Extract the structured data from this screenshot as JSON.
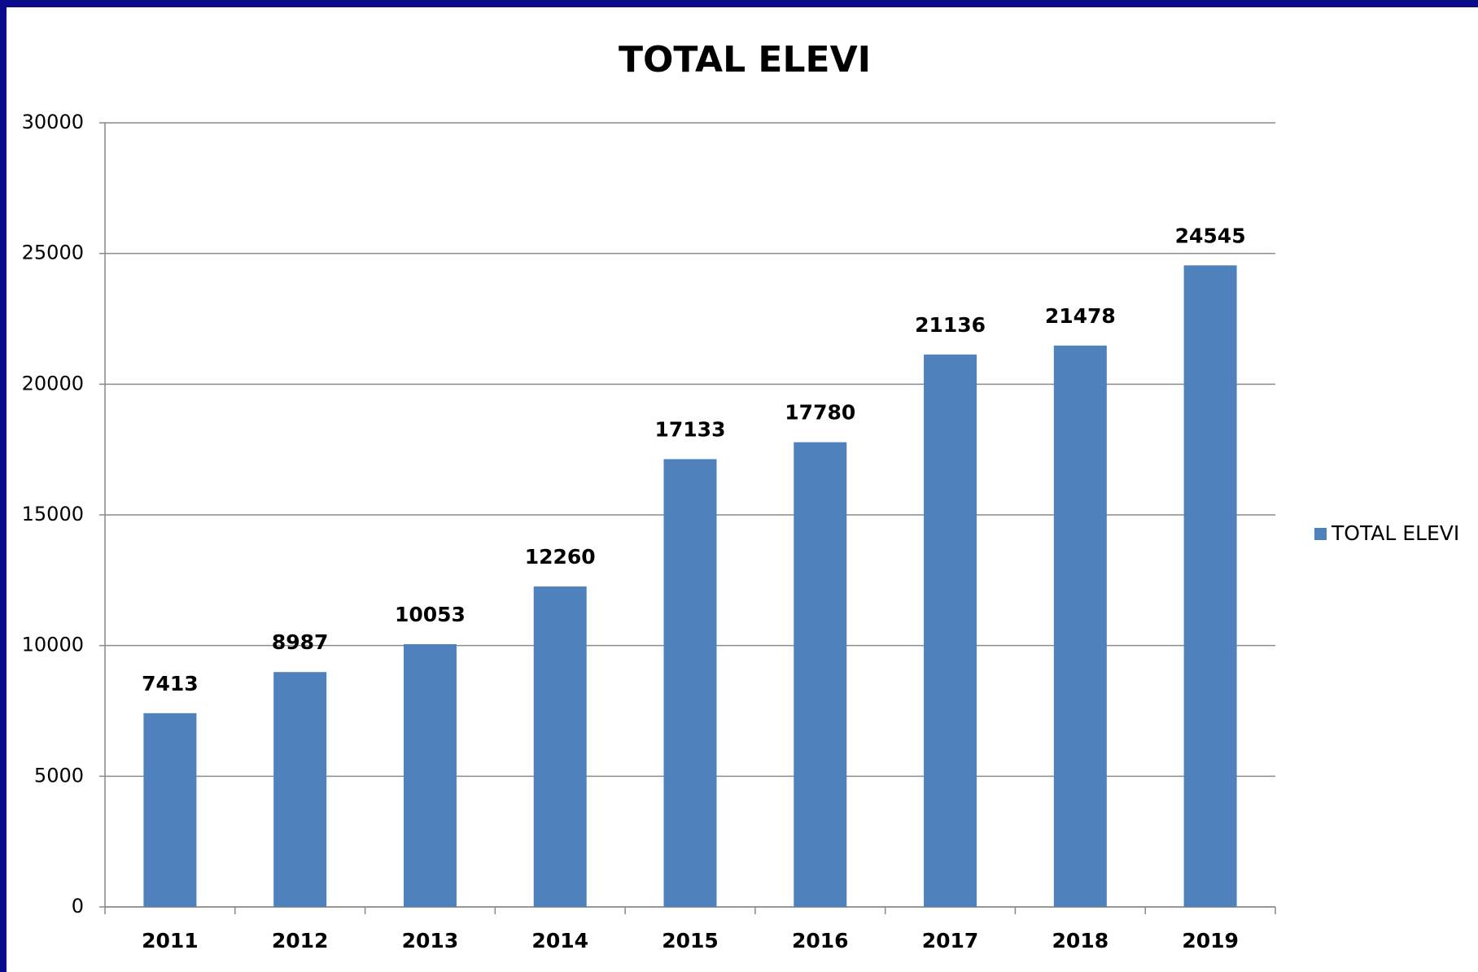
{
  "chart_data": {
    "type": "bar",
    "title": "TOTAL ELEVI",
    "categories": [
      "2011",
      "2012",
      "2013",
      "2014",
      "2015",
      "2016",
      "2017",
      "2018",
      "2019"
    ],
    "series": [
      {
        "name": "TOTAL ELEVI",
        "color": "#4f81bd",
        "values": [
          7413,
          8987,
          10053,
          12260,
          17133,
          17780,
          21136,
          21478,
          24545
        ]
      }
    ],
    "ylim": [
      0,
      30000
    ],
    "yticks": [
      0,
      5000,
      10000,
      15000,
      20000,
      25000,
      30000
    ],
    "grid": true,
    "legend": "right"
  }
}
